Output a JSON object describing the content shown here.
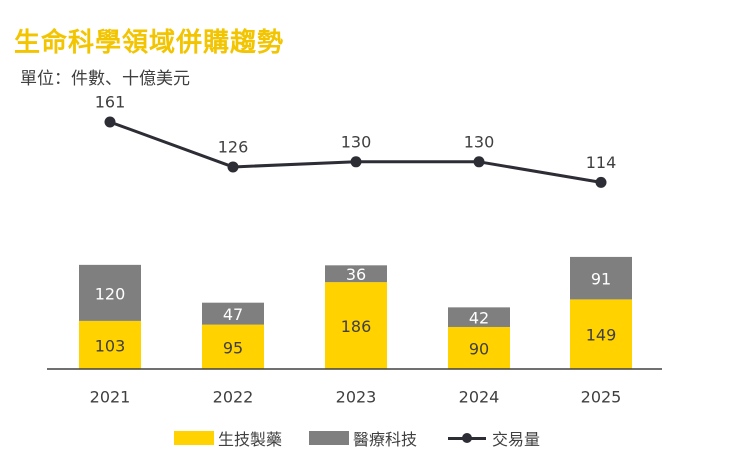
{
  "title": "生命科學領域併購趨勢",
  "subtitle": "單位：件數、十億美元",
  "colors": {
    "title": "#F2C500",
    "biopharma": "#FFD200",
    "medtech": "#7F7F7F",
    "line": "#2D2D36",
    "axis": "#404040"
  },
  "chart_data": {
    "type": "bar",
    "stacked": true,
    "categories": [
      "2021",
      "2022",
      "2023",
      "2024",
      "2025"
    ],
    "series": [
      {
        "name": "生技製藥",
        "values": [
          103,
          95,
          186,
          90,
          149
        ]
      },
      {
        "name": "醫療科技",
        "values": [
          120,
          47,
          36,
          42,
          91
        ]
      }
    ],
    "line_series": {
      "name": "交易量",
      "values": [
        161,
        126,
        130,
        130,
        114
      ]
    },
    "bar_labels": {
      "biopharma": [
        "103",
        "95",
        "186",
        "90",
        "149"
      ],
      "medtech": [
        "120",
        "47",
        "36",
        "42",
        "91"
      ]
    },
    "line_labels": [
      "161",
      "126",
      "130",
      "130",
      "114"
    ],
    "legend_position": "bottom",
    "grid": false
  }
}
